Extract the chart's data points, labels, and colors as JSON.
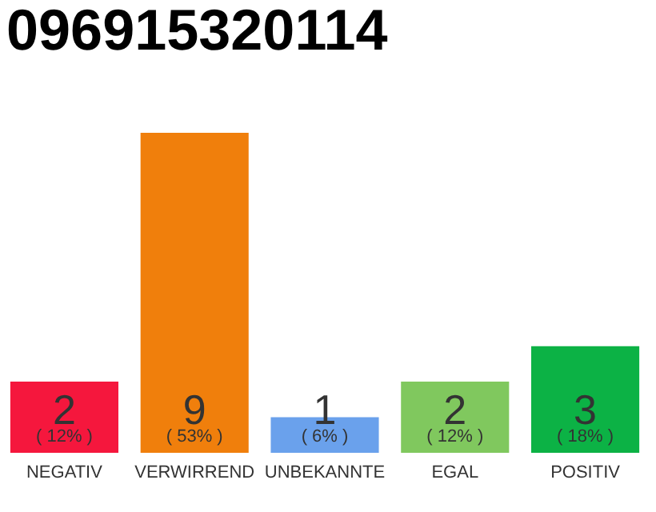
{
  "chart_data": {
    "type": "bar",
    "title": "096915320114",
    "categories": [
      "NEGATIV",
      "VERWIRREND",
      "UNBEKANNTE",
      "EGAL",
      "POSITIV"
    ],
    "values": [
      2,
      9,
      1,
      2,
      3
    ],
    "colors": [
      "#f5173d",
      "#f07f0c",
      "#6aa1ec",
      "#80c85e",
      "#0cb245"
    ],
    "data_labels": true,
    "tick_labels": "x",
    "annotations": [
      "( 12% )",
      "( 53% )",
      "( 6% )",
      "( 12% )",
      "( 18% )"
    ]
  }
}
